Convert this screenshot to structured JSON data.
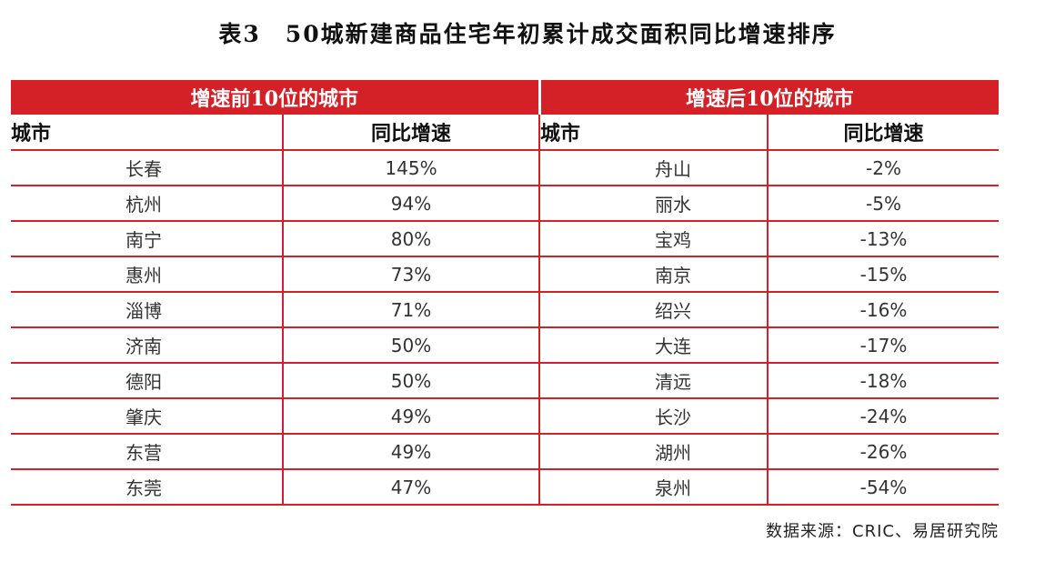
{
  "title": "表3　50城新建商品住宅年初累计成交面积同比增速排序",
  "table": {
    "left_header": "增速前10位的城市",
    "right_header": "增速后10位的城市",
    "col_city": "城市",
    "col_growth": "同比增速",
    "rows": [
      {
        "top_city": "长春",
        "top_growth": "145%",
        "bottom_city": "舟山",
        "bottom_growth": "-2%"
      },
      {
        "top_city": "杭州",
        "top_growth": "94%",
        "bottom_city": "丽水",
        "bottom_growth": "-5%"
      },
      {
        "top_city": "南宁",
        "top_growth": "80%",
        "bottom_city": "宝鸡",
        "bottom_growth": "-13%"
      },
      {
        "top_city": "惠州",
        "top_growth": "73%",
        "bottom_city": "南京",
        "bottom_growth": "-15%"
      },
      {
        "top_city": "淄博",
        "top_growth": "71%",
        "bottom_city": "绍兴",
        "bottom_growth": "-16%"
      },
      {
        "top_city": "济南",
        "top_growth": "50%",
        "bottom_city": "大连",
        "bottom_growth": "-17%"
      },
      {
        "top_city": "德阳",
        "top_growth": "50%",
        "bottom_city": "清远",
        "bottom_growth": "-18%"
      },
      {
        "top_city": "肇庆",
        "top_growth": "49%",
        "bottom_city": "长沙",
        "bottom_growth": "-24%"
      },
      {
        "top_city": "东营",
        "top_growth": "49%",
        "bottom_city": "湖州",
        "bottom_growth": "-26%"
      },
      {
        "top_city": "东莞",
        "top_growth": "47%",
        "bottom_city": "泉州",
        "bottom_growth": "-54%"
      }
    ]
  },
  "source": "数据来源：CRIC、易居研究院",
  "colors": {
    "accent": "#d42027"
  }
}
